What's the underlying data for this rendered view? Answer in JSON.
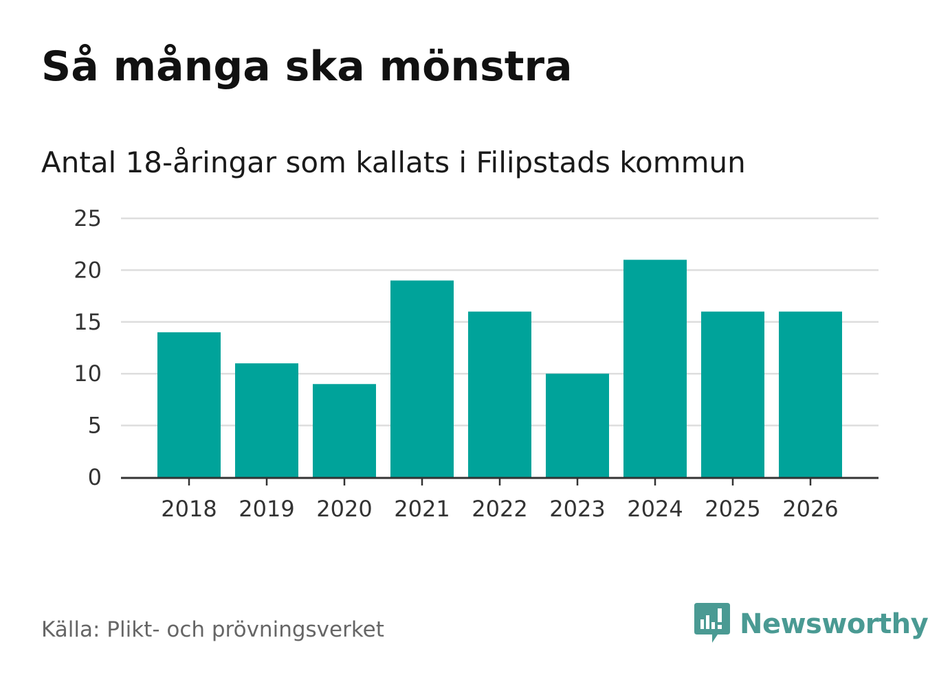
{
  "title": "Så många ska mönstra",
  "subtitle": "Antal 18-åringar som kallats i Filipstads kommun",
  "source": "Källa: Plikt- och prövningsverket",
  "brand": {
    "name": "Newsworthy",
    "icon": "newsworthy-logo-icon",
    "color": "#4a9a93"
  },
  "colors": {
    "bar": "#00a39a",
    "grid": "#dddddd",
    "axis": "#333333",
    "tick_text": "#333333"
  },
  "chart_data": {
    "type": "bar",
    "title": "Så många ska mönstra",
    "subtitle": "Antal 18-åringar som kallats i Filipstads kommun",
    "xlabel": "",
    "ylabel": "",
    "categories": [
      "2018",
      "2019",
      "2020",
      "2021",
      "2022",
      "2023",
      "2024",
      "2025",
      "2026"
    ],
    "values": [
      14,
      11,
      9,
      19,
      16,
      10,
      21,
      16,
      16
    ],
    "ylim": [
      0,
      25
    ],
    "yticks": [
      "0",
      "5",
      "10",
      "15",
      "20",
      "25"
    ],
    "grid": true,
    "legend": "none"
  }
}
